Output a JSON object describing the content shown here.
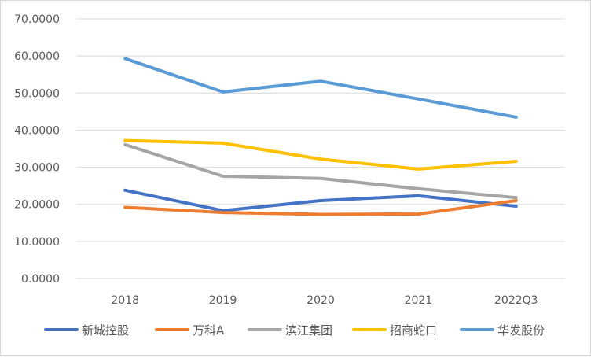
{
  "chart_data": {
    "type": "line",
    "title": "",
    "xlabel": "",
    "ylabel": "",
    "categories": [
      "2018",
      "2019",
      "2020",
      "2021",
      "2022Q3"
    ],
    "ylim": [
      0,
      70
    ],
    "yticks": [
      0,
      10,
      20,
      30,
      40,
      50,
      60,
      70
    ],
    "ytick_labels": [
      "0.0000",
      "10.0000",
      "20.0000",
      "30.0000",
      "40.0000",
      "50.0000",
      "60.0000",
      "70.0000"
    ],
    "grid": true,
    "legend_position": "bottom",
    "series": [
      {
        "name": "新城控股",
        "color": "#4472C4",
        "values": [
          23.8,
          18.3,
          21.0,
          22.3,
          19.5
        ]
      },
      {
        "name": "万科A",
        "color": "#ED7D31",
        "values": [
          19.2,
          17.8,
          17.3,
          17.4,
          21.0
        ]
      },
      {
        "name": "滨江集团",
        "color": "#A5A5A5",
        "values": [
          36.1,
          27.6,
          27.0,
          24.2,
          21.8
        ]
      },
      {
        "name": "招商蛇口",
        "color": "#FFC000",
        "values": [
          37.2,
          36.5,
          32.2,
          29.5,
          31.6
        ]
      },
      {
        "name": "华发股份",
        "color": "#5B9BD5",
        "values": [
          59.3,
          50.3,
          53.2,
          48.4,
          43.5
        ]
      }
    ]
  }
}
